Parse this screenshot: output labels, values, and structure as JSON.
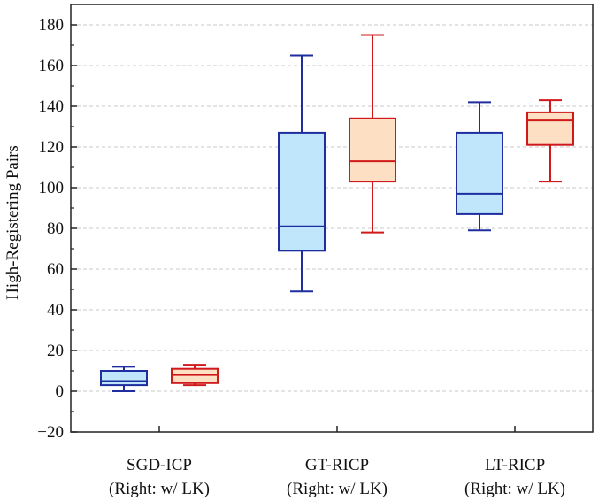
{
  "chart_data": {
    "type": "box",
    "ylabel": "High-Registering Pairs",
    "ylim": [
      -20,
      190
    ],
    "yticks": [
      -20,
      0,
      20,
      40,
      60,
      80,
      100,
      120,
      140,
      160,
      180
    ],
    "grid": "horizontal-dashed",
    "categories": [
      {
        "line1": "SGD-ICP",
        "line2": "(Right: w/ LK)"
      },
      {
        "line1": "GT-RICP",
        "line2": "(Right: w/ LK)"
      },
      {
        "line1": "LT-RICP",
        "line2": "(Right: w/ LK)"
      }
    ],
    "series": [
      {
        "fill": "#bfe6fb",
        "stroke": "#1f2e9e",
        "boxes": [
          {
            "min": 0,
            "q1": 3,
            "median": 5,
            "q3": 10,
            "max": 12
          },
          {
            "min": 49,
            "q1": 69,
            "median": 81,
            "q3": 127,
            "max": 165
          },
          {
            "min": 79,
            "q1": 87,
            "median": 97,
            "q3": 127,
            "max": 142
          }
        ]
      },
      {
        "fill": "#fde0c4",
        "stroke": "#d0191b",
        "boxes": [
          {
            "min": 3,
            "q1": 4,
            "median": 8,
            "q3": 11,
            "max": 13
          },
          {
            "min": 78,
            "q1": 103,
            "median": 113,
            "q3": 134,
            "max": 175
          },
          {
            "min": 103,
            "q1": 121,
            "median": 133,
            "q3": 137,
            "max": 143
          }
        ]
      }
    ]
  }
}
